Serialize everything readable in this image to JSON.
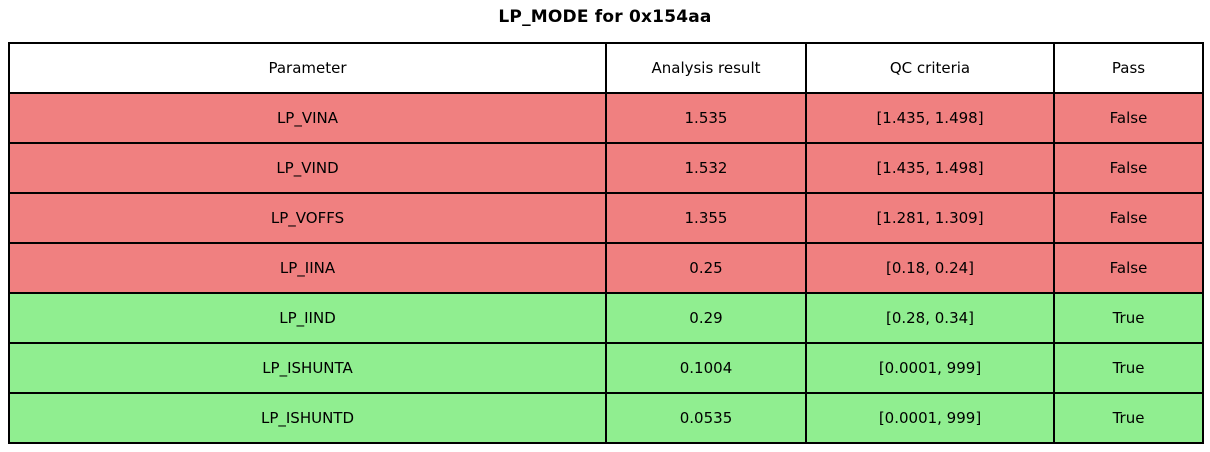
{
  "colors": {
    "fail_row": "#f08080",
    "pass_row": "#90ee90",
    "border": "#000000",
    "header_bg": "#ffffff",
    "text": "#000000"
  },
  "chart_data": {
    "type": "table",
    "title": "LP_MODE for 0x154aa",
    "columns": [
      "Parameter",
      "Analysis result",
      "QC criteria",
      "Pass"
    ],
    "rows": [
      {
        "parameter": "LP_VINA",
        "result": "1.535",
        "criteria": "[1.435, 1.498]",
        "pass": "False"
      },
      {
        "parameter": "LP_VIND",
        "result": "1.532",
        "criteria": "[1.435, 1.498]",
        "pass": "False"
      },
      {
        "parameter": "LP_VOFFS",
        "result": "1.355",
        "criteria": "[1.281, 1.309]",
        "pass": "False"
      },
      {
        "parameter": "LP_IINA",
        "result": "0.25",
        "criteria": "[0.18, 0.24]",
        "pass": "False"
      },
      {
        "parameter": "LP_IIND",
        "result": "0.29",
        "criteria": "[0.28, 0.34]",
        "pass": "True"
      },
      {
        "parameter": "LP_ISHUNTA",
        "result": "0.1004",
        "criteria": "[0.0001, 999]",
        "pass": "True"
      },
      {
        "parameter": "LP_ISHUNTD",
        "result": "0.0535",
        "criteria": "[0.0001, 999]",
        "pass": "True"
      }
    ]
  }
}
